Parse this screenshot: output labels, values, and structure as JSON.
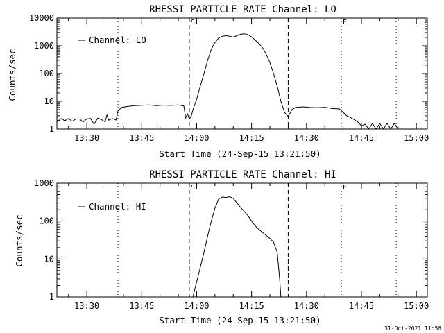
{
  "footer": {
    "timestamp": "31-Oct-2021 11:56"
  },
  "chart_data": [
    {
      "type": "line",
      "title": "RHESSI PARTICLE_RATE Channel: LO",
      "xlabel": "Start Time (24-Sep-15 13:21:50)",
      "ylabel": "Counts/sec",
      "yscale": "log",
      "xlim": [
        "13:21:50",
        "15:03:00"
      ],
      "ylim": [
        1,
        10000
      ],
      "x_ticks": [
        "13:30",
        "13:45",
        "14:00",
        "14:15",
        "14:30",
        "14:45",
        "15:00"
      ],
      "y_ticks": [
        {
          "value": 1,
          "label": "1"
        },
        {
          "value": 10,
          "label": "10"
        },
        {
          "value": 100,
          "label": "100"
        },
        {
          "value": 1000,
          "label": "1000"
        },
        {
          "value": 10000,
          "label": "10000"
        }
      ],
      "legend": {
        "label": "Channel: LO",
        "position": "top-left"
      },
      "markers": [
        {
          "time": "13:38:30",
          "style": "dotted",
          "label": ""
        },
        {
          "time": "13:58:00",
          "style": "dashed",
          "label": "S"
        },
        {
          "time": "14:25:00",
          "style": "dashed",
          "label": ""
        },
        {
          "time": "14:39:30",
          "style": "dotted",
          "label": "E"
        },
        {
          "time": "14:54:30",
          "style": "dotted",
          "label": ""
        }
      ],
      "series": [
        {
          "name": "Channel: LO",
          "points": [
            [
              "13:21:50",
              1.8
            ],
            [
              "13:23:00",
              2.4
            ],
            [
              "13:24:00",
              2.0
            ],
            [
              "13:25:00",
              2.4
            ],
            [
              "13:26:00",
              1.9
            ],
            [
              "13:27:00",
              2.3
            ],
            [
              "13:28:00",
              2.3
            ],
            [
              "13:29:00",
              1.8
            ],
            [
              "13:30:00",
              2.3
            ],
            [
              "13:31:00",
              2.4
            ],
            [
              "13:32:00",
              1.5
            ],
            [
              "13:33:00",
              2.5
            ],
            [
              "13:34:00",
              2.2
            ],
            [
              "13:35:00",
              1.8
            ],
            [
              "13:35:30",
              3.2
            ],
            [
              "13:36:00",
              2.1
            ],
            [
              "13:37:00",
              2.4
            ],
            [
              "13:38:00",
              2.1
            ],
            [
              "13:38:30",
              4.5
            ],
            [
              "13:39:30",
              6.0
            ],
            [
              "13:41:00",
              6.5
            ],
            [
              "13:43:00",
              7.0
            ],
            [
              "13:45:00",
              7.2
            ],
            [
              "13:47:00",
              7.4
            ],
            [
              "13:49:00",
              7.0
            ],
            [
              "13:51:00",
              7.3
            ],
            [
              "13:53:00",
              7.1
            ],
            [
              "13:55:00",
              7.4
            ],
            [
              "13:56:30",
              6.8
            ],
            [
              "13:57:00",
              2.5
            ],
            [
              "13:57:30",
              3.5
            ],
            [
              "13:58:00",
              2.3
            ],
            [
              "13:58:30",
              2.8
            ],
            [
              "13:59:00",
              5.0
            ],
            [
              "14:00:00",
              12
            ],
            [
              "14:01:00",
              35
            ],
            [
              "14:02:00",
              100
            ],
            [
              "14:03:00",
              300
            ],
            [
              "14:04:00",
              750
            ],
            [
              "14:05:00",
              1300
            ],
            [
              "14:06:00",
              1900
            ],
            [
              "14:07:00",
              2200
            ],
            [
              "14:08:00",
              2300
            ],
            [
              "14:09:00",
              2200
            ],
            [
              "14:10:00",
              2050
            ],
            [
              "14:11:00",
              2300
            ],
            [
              "14:12:00",
              2600
            ],
            [
              "14:13:00",
              2700
            ],
            [
              "14:14:00",
              2500
            ],
            [
              "14:15:00",
              2100
            ],
            [
              "14:16:00",
              1600
            ],
            [
              "14:17:00",
              1200
            ],
            [
              "14:18:00",
              850
            ],
            [
              "14:19:00",
              500
            ],
            [
              "14:20:00",
              250
            ],
            [
              "14:21:00",
              100
            ],
            [
              "14:22:00",
              35
            ],
            [
              "14:23:00",
              10
            ],
            [
              "14:24:00",
              4.0
            ],
            [
              "14:25:00",
              2.8
            ],
            [
              "14:26:00",
              5.0
            ],
            [
              "14:27:00",
              6.0
            ],
            [
              "14:29:00",
              6.3
            ],
            [
              "14:31:00",
              6.0
            ],
            [
              "14:33:00",
              5.9
            ],
            [
              "14:35:00",
              6.1
            ],
            [
              "14:37:00",
              5.5
            ],
            [
              "14:39:00",
              5.3
            ],
            [
              "14:40:00",
              4.0
            ],
            [
              "14:41:00",
              3.0
            ],
            [
              "14:42:00",
              2.6
            ],
            [
              "14:43:00",
              2.2
            ],
            [
              "14:44:00",
              1.8
            ],
            [
              "14:45:00",
              1.3
            ],
            [
              "14:46:00",
              1.5
            ],
            [
              "14:47:00",
              1.0
            ],
            [
              "14:48:00",
              1.6
            ],
            [
              "14:49:00",
              1.0
            ],
            [
              "14:50:00",
              1.6
            ],
            [
              "14:51:00",
              1.0
            ],
            [
              "14:52:00",
              1.6
            ],
            [
              "14:53:00",
              1.0
            ],
            [
              "14:54:00",
              1.6
            ],
            [
              "14:55:00",
              1.0
            ]
          ]
        }
      ]
    },
    {
      "type": "line",
      "title": "RHESSI PARTICLE_RATE Channel: HI",
      "xlabel": "Start Time (24-Sep-15 13:21:50)",
      "ylabel": "Counts/sec",
      "yscale": "log",
      "xlim": [
        "13:21:50",
        "15:03:00"
      ],
      "ylim": [
        1,
        1000
      ],
      "x_ticks": [
        "13:30",
        "13:45",
        "14:00",
        "14:15",
        "14:30",
        "14:45",
        "15:00"
      ],
      "y_ticks": [
        {
          "value": 1,
          "label": "1"
        },
        {
          "value": 10,
          "label": "10"
        },
        {
          "value": 100,
          "label": "100"
        },
        {
          "value": 1000,
          "label": "1000"
        }
      ],
      "legend": {
        "label": "Channel: HI",
        "position": "top-left"
      },
      "markers": [
        {
          "time": "13:38:30",
          "style": "dotted",
          "label": ""
        },
        {
          "time": "13:58:00",
          "style": "dashed",
          "label": "S"
        },
        {
          "time": "14:25:00",
          "style": "dashed",
          "label": ""
        },
        {
          "time": "14:39:30",
          "style": "dotted",
          "label": "E"
        },
        {
          "time": "14:54:30",
          "style": "dotted",
          "label": ""
        }
      ],
      "series": [
        {
          "name": "Channel: HI",
          "points": [
            [
              "13:59:00",
              1.0
            ],
            [
              "13:59:30",
              1.6
            ],
            [
              "14:00:00",
              2.5
            ],
            [
              "14:01:00",
              6
            ],
            [
              "14:02:00",
              15
            ],
            [
              "14:03:00",
              40
            ],
            [
              "14:04:00",
              100
            ],
            [
              "14:05:00",
              220
            ],
            [
              "14:06:00",
              380
            ],
            [
              "14:07:00",
              430
            ],
            [
              "14:08:00",
              420
            ],
            [
              "14:09:00",
              440
            ],
            [
              "14:10:00",
              400
            ],
            [
              "14:11:00",
              300
            ],
            [
              "14:12:00",
              230
            ],
            [
              "14:13:00",
              180
            ],
            [
              "14:14:00",
              140
            ],
            [
              "14:15:00",
              100
            ],
            [
              "14:16:00",
              75
            ],
            [
              "14:17:00",
              60
            ],
            [
              "14:18:00",
              50
            ],
            [
              "14:19:00",
              42
            ],
            [
              "14:20:00",
              35
            ],
            [
              "14:21:00",
              28
            ],
            [
              "14:22:00",
              15
            ],
            [
              "14:22:40",
              3.0
            ],
            [
              "14:23:00",
              1.0
            ]
          ]
        }
      ]
    }
  ]
}
